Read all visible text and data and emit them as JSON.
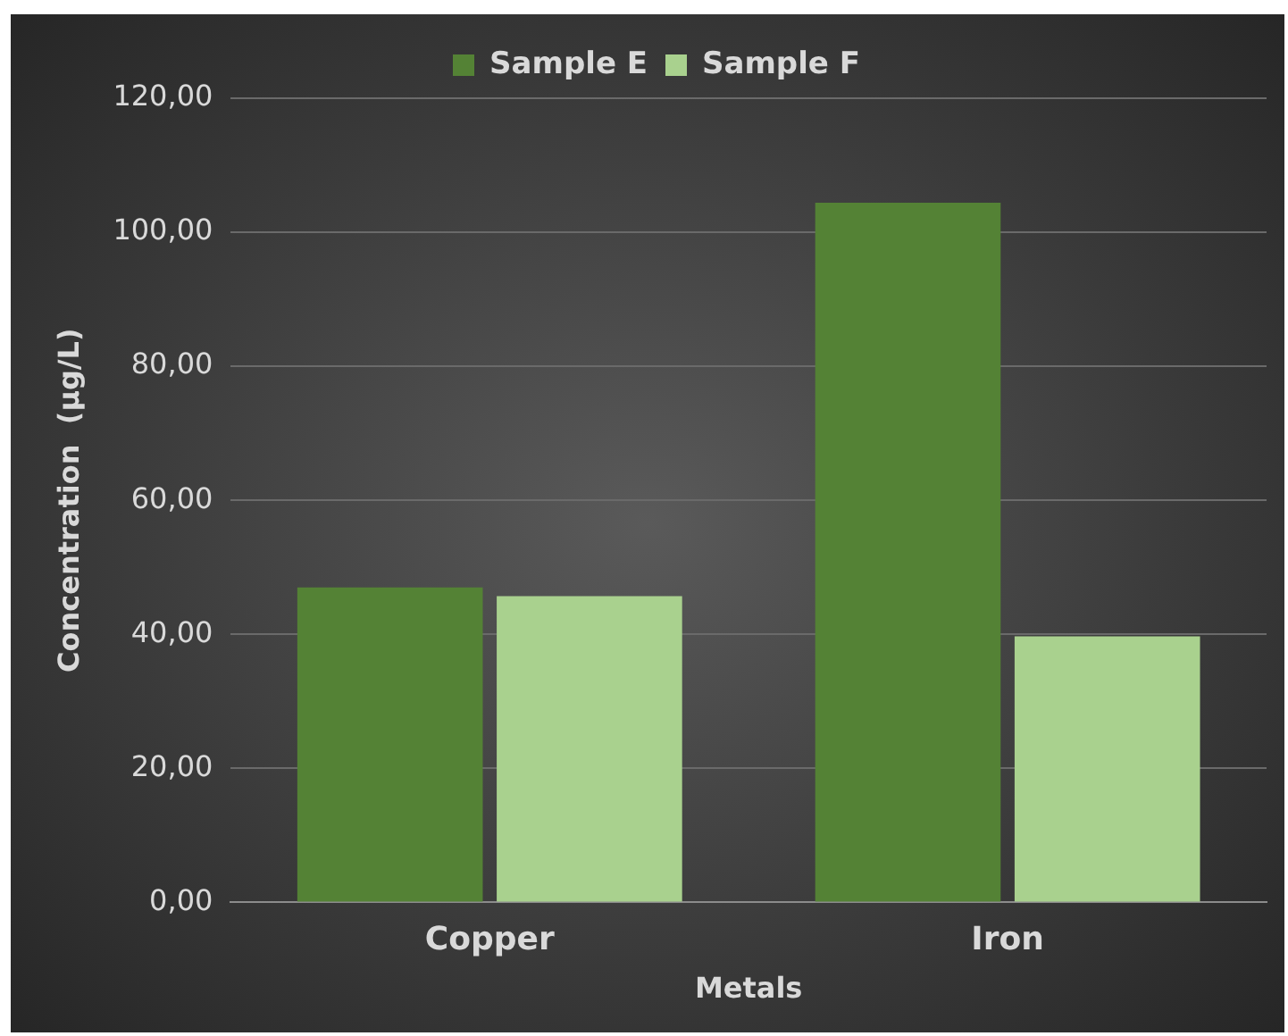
{
  "chart_data": {
    "type": "bar",
    "xlabel": "Metals",
    "ylabel": "Concentration  (µg/L)",
    "categories": [
      "Copper",
      "Iron"
    ],
    "series": [
      {
        "name": "Sample E",
        "color": "#548235",
        "values": [
          47.0,
          104.4
        ]
      },
      {
        "name": "Sample F",
        "color": "#a9d18e",
        "values": [
          45.7,
          39.7
        ]
      }
    ],
    "ylim": [
      0,
      120
    ],
    "yticks": [
      {
        "value": 0,
        "label": "0,00"
      },
      {
        "value": 20,
        "label": "20,00"
      },
      {
        "value": 40,
        "label": "40,00"
      },
      {
        "value": 60,
        "label": "60,00"
      },
      {
        "value": 80,
        "label": "80,00"
      },
      {
        "value": 100,
        "label": "100,00"
      },
      {
        "value": 120,
        "label": "120,00"
      }
    ],
    "grid": "y",
    "legend": "top"
  }
}
